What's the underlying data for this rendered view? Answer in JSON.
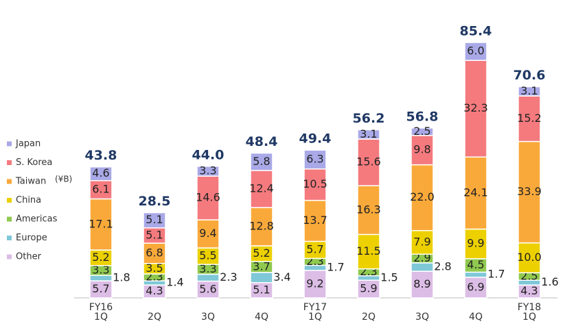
{
  "chart_data": {
    "type": "stacked_bar",
    "unit_label": "(¥B)",
    "categories": [
      "FY16\n1Q",
      "2Q",
      "3Q",
      "4Q",
      "FY17\n1Q",
      "2Q",
      "3Q",
      "4Q",
      "FY18\n1Q"
    ],
    "series": [
      {
        "name": "Japan",
        "color": "#a9a9e8",
        "values": [
          4.6,
          5.1,
          3.3,
          5.8,
          6.3,
          3.1,
          2.5,
          6.0,
          3.1
        ],
        "value_labels": [
          "4.6",
          "5.1",
          "3.3",
          "5.8",
          "6.3",
          "3.1",
          "2.5",
          "6.0",
          "3.1"
        ]
      },
      {
        "name": "S. Korea",
        "color": "#f47a7e",
        "values": [
          6.1,
          5.1,
          14.6,
          12.4,
          10.5,
          15.6,
          9.8,
          32.3,
          15.2
        ],
        "value_labels": [
          "6.1",
          "5.1",
          "14.6",
          "12.4",
          "10.5",
          "15.6",
          "9.8",
          "32.3",
          "15.2"
        ]
      },
      {
        "name": "Taiwan",
        "color": "#f9a93a",
        "values": [
          17.1,
          6.8,
          9.4,
          12.8,
          13.7,
          16.3,
          22.0,
          24.1,
          33.9
        ],
        "value_labels": [
          "17.1",
          "6.8",
          "9.4",
          "12.8",
          "13.7",
          "16.3",
          "22.0",
          "24.1",
          "33.9"
        ]
      },
      {
        "name": "China",
        "color": "#ecd000",
        "values": [
          5.2,
          3.5,
          5.5,
          5.2,
          5.7,
          11.5,
          7.9,
          9.9,
          10.0
        ],
        "value_labels": [
          "5.2",
          "3.5",
          "5.5",
          "5.2",
          "5.7",
          "11.5",
          "7.9",
          "9.9",
          "10.0"
        ]
      },
      {
        "name": "Americas",
        "color": "#8fc94f",
        "values": [
          3.3,
          2.3,
          3.3,
          3.7,
          2.3,
          2.3,
          2.9,
          4.5,
          2.5
        ],
        "value_labels": [
          "3.3",
          "2.3",
          "3.3",
          "3.7",
          "2.3",
          "2.3",
          "2.9",
          "4.5",
          "2.5"
        ]
      },
      {
        "name": "Europe",
        "color": "#7ec8d8",
        "values": [
          1.8,
          1.4,
          2.3,
          3.4,
          1.7,
          1.5,
          2.8,
          1.7,
          1.6
        ],
        "value_labels": [
          "1.8",
          "1.4",
          "2.3",
          "3.4",
          "1.7",
          "1.5",
          "2.8",
          "1.7",
          "1.6"
        ]
      },
      {
        "name": "Other",
        "color": "#dcbde6",
        "values": [
          5.7,
          4.3,
          5.6,
          5.1,
          9.2,
          5.9,
          8.9,
          6.9,
          4.3
        ],
        "value_labels": [
          "5.7",
          "4.3",
          "5.6",
          "5.1",
          "9.2",
          "5.9",
          "8.9",
          "6.9",
          "4.3"
        ]
      }
    ],
    "totals": [
      43.8,
      28.5,
      44.0,
      48.4,
      49.4,
      56.2,
      56.8,
      85.4,
      70.6
    ],
    "total_labels": [
      "43.8",
      "28.5",
      "44.0",
      "48.4",
      "49.4",
      "56.2",
      "56.8",
      "85.4",
      "70.6"
    ],
    "total_color": "#1f3864"
  }
}
